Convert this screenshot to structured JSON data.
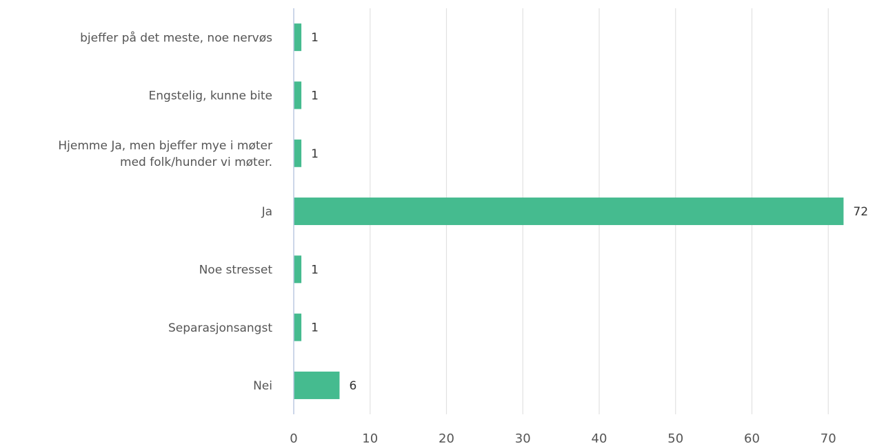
{
  "chart_data": {
    "type": "bar",
    "orientation": "horizontal",
    "categories": [
      [
        "bjeffer på det meste, noe nervøs"
      ],
      [
        "Engstelig,  kunne  bite"
      ],
      [
        "Hjemme Ja, men bjeffer mye i møter",
        "med folk/hunder vi møter."
      ],
      [
        "Ja"
      ],
      [
        "Noe stresset"
      ],
      [
        "Separasjonsangst"
      ],
      [
        "Nei"
      ]
    ],
    "values": [
      1,
      1,
      1,
      72,
      1,
      1,
      6
    ],
    "data_labels": [
      "1",
      "1",
      "1",
      "72",
      "1",
      "1",
      "6"
    ],
    "xlim": [
      0,
      75
    ],
    "xticks": [
      0,
      10,
      20,
      30,
      40,
      50,
      60,
      70
    ],
    "xtick_labels": [
      "0",
      "10",
      "20",
      "30",
      "40",
      "50",
      "60",
      "70"
    ],
    "grid": true,
    "colors": {
      "bar": "#45bb8f",
      "grid": "#e1e1e1",
      "axis": "#bcc8e2",
      "label": "#555555",
      "value_label": "#333333",
      "tick": "#555555"
    }
  }
}
